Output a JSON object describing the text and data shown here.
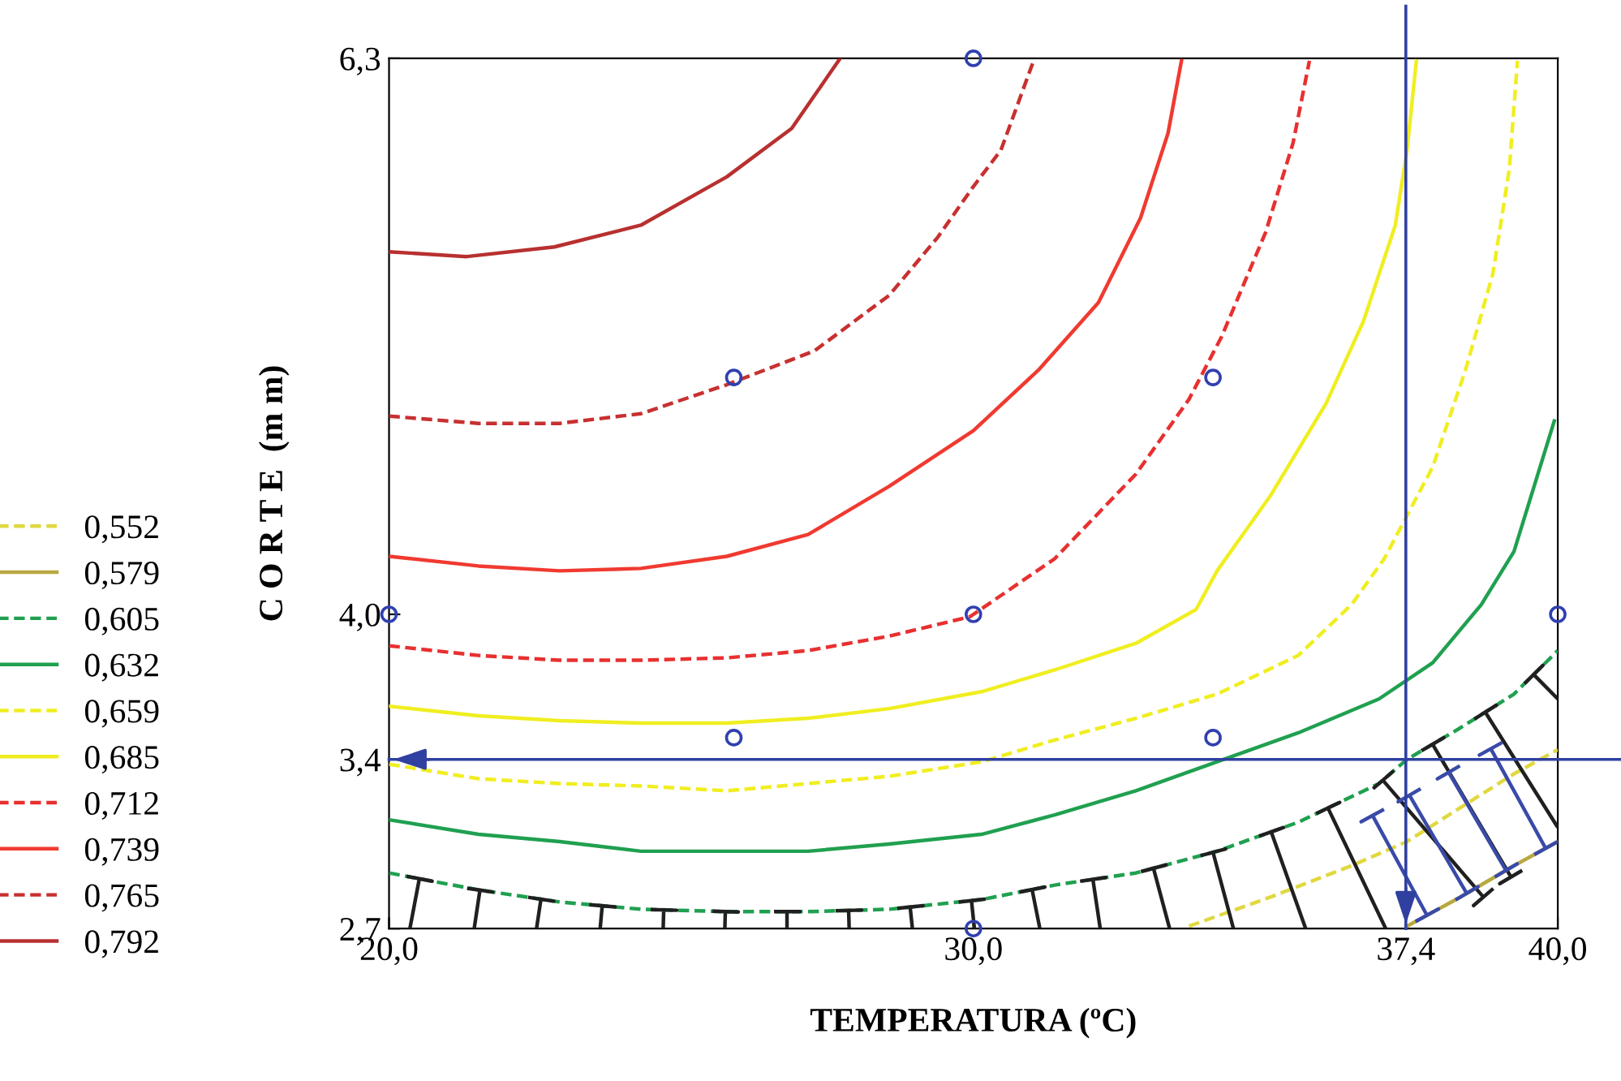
{
  "chart_data": {
    "type": "line",
    "xlabel": "TEMPERATURA (ºC)",
    "ylabel": "C O R T E  (m m)",
    "xlim": [
      20,
      40
    ],
    "xticks": [
      {
        "value": 20,
        "label": "20,0"
      },
      {
        "value": 30,
        "label": "30,0"
      },
      {
        "value": 37.4,
        "label": "37,4"
      },
      {
        "value": 40,
        "label": "40,0"
      }
    ],
    "ylim": [
      2.7,
      6.3
    ],
    "yticks": [
      {
        "value": 2.7,
        "label": "2,7"
      },
      {
        "value": 3.4,
        "label": "3,4"
      },
      {
        "value": 4.0,
        "label": "4,0"
      },
      {
        "value": 6.3,
        "label": "6,3"
      }
    ],
    "legend": "left",
    "grid": false,
    "marker": "none",
    "series": [
      {
        "name": "0,552",
        "color": "#e0d840",
        "line_style": "dashed",
        "x": [
          33.69,
          35.08,
          36.47,
          37.42,
          38.33,
          39.25,
          40
        ],
        "values": [
          2.71,
          2.83,
          2.96,
          3.06,
          3.2,
          3.34,
          3.44
        ]
      },
      {
        "name": "0,579",
        "color": "#b8a840",
        "line_style": "solid",
        "x": [
          37.42,
          38.33,
          39.25,
          40
        ],
        "values": [
          2.71,
          2.83,
          2.96,
          3.06
        ]
      },
      {
        "name": "0,605",
        "color": "#20a050",
        "line_style": "dashed",
        "x": [
          20,
          21.53,
          22.92,
          24.31,
          25.78,
          27.17,
          28.56,
          30.14,
          31.39,
          32.78,
          34.17,
          35.56,
          36.94,
          37.42,
          38.33,
          39.25,
          40
        ],
        "values": [
          2.93,
          2.86,
          2.81,
          2.78,
          2.77,
          2.77,
          2.78,
          2.82,
          2.88,
          2.93,
          3.02,
          3.14,
          3.3,
          3.4,
          3.53,
          3.67,
          3.85
        ]
      },
      {
        "name": "0,632",
        "color": "#20a050",
        "line_style": "solid",
        "x": [
          20,
          21.53,
          22.92,
          24.31,
          25.78,
          27.17,
          28.56,
          30.14,
          31.39,
          32.78,
          34.17,
          35.56,
          36.94,
          37.86,
          38.69,
          39.25,
          39.94
        ],
        "values": [
          3.15,
          3.09,
          3.06,
          3.02,
          3.02,
          3.02,
          3.05,
          3.09,
          3.17,
          3.27,
          3.39,
          3.51,
          3.65,
          3.8,
          4.04,
          4.26,
          4.8
        ]
      },
      {
        "name": "0,659",
        "color": "#f0ee20",
        "line_style": "dashed",
        "x": [
          20,
          21.53,
          22.92,
          24.31,
          25.78,
          27.17,
          28.56,
          30.14,
          31.39,
          32.78,
          34.17,
          35.56,
          36.47,
          37.03,
          37.86,
          38.42,
          38.89,
          39.17,
          39.31
        ],
        "values": [
          3.38,
          3.32,
          3.3,
          3.29,
          3.27,
          3.3,
          3.33,
          3.39,
          3.48,
          3.57,
          3.67,
          3.83,
          4.04,
          4.23,
          4.61,
          5.01,
          5.41,
          5.84,
          6.29
        ]
      },
      {
        "name": "0,685",
        "color": "#f0ee20",
        "line_style": "solid",
        "x": [
          20,
          21.53,
          22.92,
          24.31,
          25.78,
          27.17,
          28.56,
          30.14,
          31.39,
          32.78,
          33.81,
          34.17,
          35.08,
          36.03,
          36.67,
          37.22,
          37.42,
          37.58
        ],
        "values": [
          3.62,
          3.58,
          3.56,
          3.55,
          3.55,
          3.57,
          3.61,
          3.68,
          3.77,
          3.88,
          4.02,
          4.18,
          4.49,
          4.87,
          5.21,
          5.61,
          5.92,
          6.29
        ]
      },
      {
        "name": "0,712",
        "color": "#e83030",
        "line_style": "dashed",
        "x": [
          20,
          21.53,
          22.92,
          24.31,
          25.78,
          27.17,
          28.56,
          29.94,
          31.39,
          32.78,
          33.69,
          34.25,
          35.0,
          35.47,
          35.75
        ],
        "values": [
          3.87,
          3.83,
          3.81,
          3.81,
          3.82,
          3.85,
          3.91,
          3.99,
          4.23,
          4.58,
          4.89,
          5.15,
          5.58,
          5.95,
          6.29
        ]
      },
      {
        "name": "0,739",
        "color": "#f03a30",
        "line_style": "solid",
        "x": [
          20,
          21.53,
          22.92,
          24.31,
          25.78,
          27.17,
          28.56,
          30.0,
          31.11,
          32.14,
          32.86,
          33.33,
          33.56
        ],
        "values": [
          4.24,
          4.2,
          4.18,
          4.19,
          4.24,
          4.33,
          4.53,
          4.76,
          5.01,
          5.29,
          5.64,
          5.99,
          6.29
        ]
      },
      {
        "name": "0,765",
        "color": "#c83030",
        "line_style": "dashed",
        "x": [
          20,
          21.53,
          22.92,
          24.31,
          25.78,
          27.28,
          28.56,
          29.39,
          30.0,
          30.47,
          31.03
        ],
        "values": [
          4.82,
          4.79,
          4.79,
          4.83,
          4.95,
          5.09,
          5.32,
          5.56,
          5.77,
          5.92,
          6.29
        ]
      },
      {
        "name": "0,792",
        "color": "#b83030",
        "line_style": "solid",
        "x": [
          20,
          21.33,
          22.83,
          24.31,
          25.78,
          26.89,
          27.72
        ],
        "values": [
          5.5,
          5.48,
          5.52,
          5.61,
          5.81,
          6.01,
          6.3
        ]
      },
      {
        "type": "scatter",
        "color": "#3040b0",
        "marker": "circle",
        "x": [
          20,
          25.9,
          25.9,
          30,
          30,
          30,
          34.1,
          34.1,
          40
        ],
        "values": [
          4.0,
          4.98,
          3.49,
          6.3,
          4.0,
          2.7,
          4.98,
          3.49,
          4.0
        ]
      }
    ],
    "ref_lines": [
      {
        "axis": "x",
        "value": 37.4,
        "color": "#3040a0"
      },
      {
        "axis": "y",
        "value": 3.4,
        "color": "#3040a0"
      }
    ]
  }
}
